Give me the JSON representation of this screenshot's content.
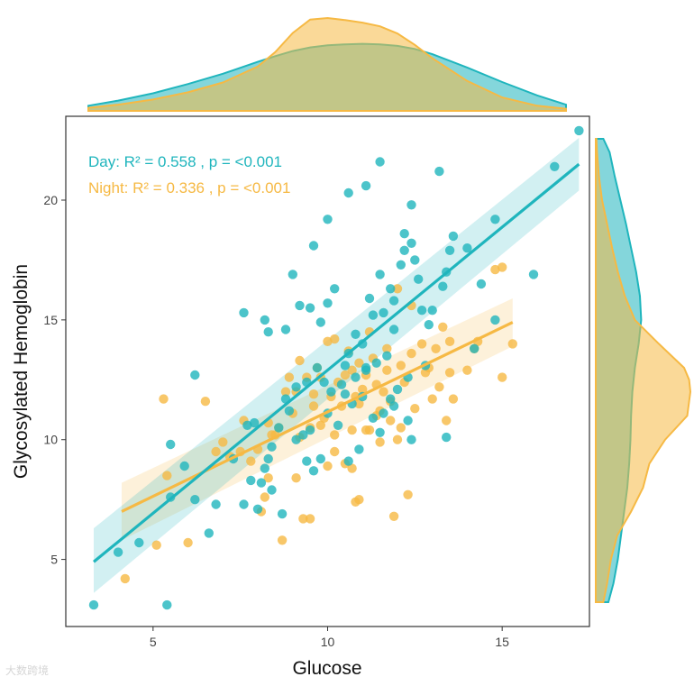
{
  "chart_data": {
    "type": "scatter",
    "xlabel": "Glucose",
    "ylabel": "Glycosylated Hemoglobin",
    "xlim": [
      2.5,
      17.5
    ],
    "ylim": [
      2.2,
      23.5
    ],
    "x_ticks": [
      5,
      10,
      15
    ],
    "y_ticks": [
      5,
      10,
      15,
      20
    ],
    "grid": false,
    "colors": {
      "Day": "#1fb5bd",
      "Night": "#f6b944",
      "overlap": "#c2cc8f",
      "frame": "#333333"
    },
    "annotations": [
      {
        "series": "Day",
        "text": "Day: R² = 0.558 , p = <0.001"
      },
      {
        "series": "Night",
        "text": "Night: R² = 0.336 , p = <0.001"
      }
    ],
    "series": [
      {
        "name": "Day",
        "fit": {
          "x": [
            3.3,
            17.2
          ],
          "y": [
            4.9,
            21.5
          ],
          "ci_start": [
            3.6,
            6.3
          ],
          "ci_end": [
            20.4,
            22.6
          ]
        },
        "points": [
          [
            3.3,
            3.1
          ],
          [
            4.0,
            5.3
          ],
          [
            4.6,
            5.7
          ],
          [
            5.4,
            3.1
          ],
          [
            5.5,
            7.6
          ],
          [
            5.5,
            9.8
          ],
          [
            5.9,
            8.9
          ],
          [
            6.2,
            12.7
          ],
          [
            6.2,
            7.5
          ],
          [
            6.6,
            6.1
          ],
          [
            6.8,
            7.3
          ],
          [
            7.3,
            9.2
          ],
          [
            7.6,
            15.3
          ],
          [
            7.6,
            7.3
          ],
          [
            7.7,
            10.6
          ],
          [
            7.8,
            8.3
          ],
          [
            7.9,
            10.7
          ],
          [
            8.0,
            7.1
          ],
          [
            8.1,
            8.2
          ],
          [
            8.2,
            8.8
          ],
          [
            8.2,
            15.0
          ],
          [
            8.3,
            14.5
          ],
          [
            8.4,
            7.9
          ],
          [
            8.4,
            9.7
          ],
          [
            8.6,
            10.5
          ],
          [
            8.7,
            6.9
          ],
          [
            8.8,
            14.6
          ],
          [
            8.9,
            11.2
          ],
          [
            9.0,
            16.9
          ],
          [
            9.1,
            12.2
          ],
          [
            9.2,
            15.6
          ],
          [
            9.3,
            10.2
          ],
          [
            9.4,
            12.4
          ],
          [
            9.5,
            15.5
          ],
          [
            9.5,
            10.4
          ],
          [
            9.6,
            18.1
          ],
          [
            9.6,
            8.7
          ],
          [
            9.7,
            13.0
          ],
          [
            9.8,
            9.2
          ],
          [
            9.8,
            14.9
          ],
          [
            10.0,
            19.2
          ],
          [
            10.0,
            11.1
          ],
          [
            10.0,
            15.7
          ],
          [
            10.1,
            12.0
          ],
          [
            10.2,
            16.3
          ],
          [
            10.3,
            10.6
          ],
          [
            10.4,
            12.3
          ],
          [
            10.5,
            13.1
          ],
          [
            10.6,
            20.3
          ],
          [
            10.6,
            13.6
          ],
          [
            10.7,
            11.5
          ],
          [
            10.8,
            12.6
          ],
          [
            10.9,
            9.6
          ],
          [
            11.0,
            14.0
          ],
          [
            11.0,
            11.8
          ],
          [
            11.1,
            20.6
          ],
          [
            11.1,
            13.0
          ],
          [
            11.2,
            15.9
          ],
          [
            11.3,
            10.9
          ],
          [
            11.3,
            15.2
          ],
          [
            11.4,
            13.2
          ],
          [
            11.5,
            21.6
          ],
          [
            11.5,
            16.9
          ],
          [
            11.6,
            15.3
          ],
          [
            11.7,
            13.5
          ],
          [
            11.8,
            11.7
          ],
          [
            11.8,
            16.3
          ],
          [
            11.9,
            14.6
          ],
          [
            11.9,
            15.8
          ],
          [
            12.0,
            12.1
          ],
          [
            12.1,
            17.3
          ],
          [
            12.2,
            18.6
          ],
          [
            12.2,
            17.9
          ],
          [
            12.3,
            12.6
          ],
          [
            12.3,
            10.8
          ],
          [
            12.4,
            18.2
          ],
          [
            12.4,
            19.8
          ],
          [
            12.5,
            17.5
          ],
          [
            12.6,
            16.7
          ],
          [
            12.7,
            15.4
          ],
          [
            12.9,
            14.8
          ],
          [
            13.0,
            15.4
          ],
          [
            13.2,
            21.2
          ],
          [
            13.3,
            16.4
          ],
          [
            13.4,
            17.0
          ],
          [
            13.5,
            17.9
          ],
          [
            13.6,
            18.5
          ],
          [
            14.0,
            18.0
          ],
          [
            14.2,
            13.8
          ],
          [
            14.4,
            16.5
          ],
          [
            14.8,
            19.2
          ],
          [
            14.8,
            15.0
          ],
          [
            15.9,
            16.9
          ],
          [
            16.5,
            21.4
          ],
          [
            17.2,
            22.9
          ],
          [
            10.5,
            11.9
          ],
          [
            9.9,
            12.4
          ],
          [
            8.8,
            11.7
          ],
          [
            12.4,
            10.0
          ],
          [
            11.5,
            10.3
          ],
          [
            8.3,
            9.2
          ],
          [
            10.8,
            14.4
          ],
          [
            11.6,
            11.1
          ],
          [
            9.1,
            10.0
          ],
          [
            13.4,
            10.1
          ],
          [
            11.9,
            11.4
          ],
          [
            10.6,
            9.1
          ],
          [
            12.8,
            13.1
          ],
          [
            9.4,
            9.1
          ],
          [
            11.1,
            12.9
          ]
        ]
      },
      {
        "name": "Night",
        "fit": {
          "x": [
            4.1,
            15.3
          ],
          "y": [
            7.0,
            14.9
          ],
          "ci_start": [
            5.8,
            8.2
          ],
          "ci_end": [
            13.9,
            15.9
          ]
        },
        "points": [
          [
            4.2,
            4.2
          ],
          [
            5.1,
            5.6
          ],
          [
            5.3,
            11.7
          ],
          [
            5.4,
            8.5
          ],
          [
            6.0,
            5.7
          ],
          [
            6.5,
            11.6
          ],
          [
            6.8,
            9.5
          ],
          [
            7.0,
            9.9
          ],
          [
            7.2,
            9.3
          ],
          [
            7.5,
            9.5
          ],
          [
            7.6,
            10.8
          ],
          [
            7.8,
            9.1
          ],
          [
            8.0,
            9.6
          ],
          [
            8.1,
            7.0
          ],
          [
            8.2,
            7.6
          ],
          [
            8.3,
            8.4
          ],
          [
            8.3,
            10.7
          ],
          [
            8.5,
            10.2
          ],
          [
            8.6,
            10.5
          ],
          [
            8.7,
            5.8
          ],
          [
            8.8,
            12.0
          ],
          [
            8.9,
            12.6
          ],
          [
            9.0,
            11.1
          ],
          [
            9.1,
            12.0
          ],
          [
            9.2,
            13.3
          ],
          [
            9.2,
            10.1
          ],
          [
            9.3,
            6.7
          ],
          [
            9.4,
            12.6
          ],
          [
            9.5,
            10.5
          ],
          [
            9.5,
            6.7
          ],
          [
            9.6,
            11.4
          ],
          [
            9.7,
            13.0
          ],
          [
            9.8,
            12.6
          ],
          [
            9.9,
            10.9
          ],
          [
            10.0,
            8.9
          ],
          [
            10.0,
            14.1
          ],
          [
            10.1,
            11.8
          ],
          [
            10.2,
            14.2
          ],
          [
            10.2,
            10.2
          ],
          [
            10.3,
            12.4
          ],
          [
            10.4,
            11.4
          ],
          [
            10.5,
            12.7
          ],
          [
            10.5,
            9.0
          ],
          [
            10.6,
            13.7
          ],
          [
            10.7,
            12.9
          ],
          [
            10.7,
            10.4
          ],
          [
            10.8,
            7.4
          ],
          [
            10.8,
            11.8
          ],
          [
            10.9,
            13.2
          ],
          [
            10.9,
            7.5
          ],
          [
            11.0,
            12.1
          ],
          [
            11.1,
            12.7
          ],
          [
            11.2,
            14.5
          ],
          [
            11.2,
            10.4
          ],
          [
            11.3,
            13.4
          ],
          [
            11.4,
            12.3
          ],
          [
            11.4,
            11.0
          ],
          [
            11.5,
            9.9
          ],
          [
            11.6,
            12.0
          ],
          [
            11.7,
            13.8
          ],
          [
            11.8,
            11.6
          ],
          [
            11.8,
            10.8
          ],
          [
            11.9,
            6.8
          ],
          [
            12.0,
            16.3
          ],
          [
            12.0,
            10.0
          ],
          [
            12.1,
            10.5
          ],
          [
            12.2,
            12.4
          ],
          [
            12.3,
            7.7
          ],
          [
            12.4,
            15.6
          ],
          [
            12.4,
            13.6
          ],
          [
            12.5,
            11.3
          ],
          [
            12.7,
            14.0
          ],
          [
            12.9,
            13.0
          ],
          [
            13.0,
            11.7
          ],
          [
            13.1,
            13.8
          ],
          [
            13.3,
            14.7
          ],
          [
            13.4,
            10.8
          ],
          [
            13.5,
            12.8
          ],
          [
            13.5,
            14.1
          ],
          [
            13.6,
            11.7
          ],
          [
            14.0,
            12.9
          ],
          [
            14.2,
            13.8
          ],
          [
            14.3,
            14.1
          ],
          [
            14.8,
            17.1
          ],
          [
            15.0,
            17.2
          ],
          [
            15.3,
            14.0
          ],
          [
            15.0,
            12.6
          ],
          [
            9.1,
            8.4
          ],
          [
            10.7,
            8.8
          ],
          [
            11.1,
            10.4
          ],
          [
            9.6,
            11.9
          ],
          [
            8.4,
            10.2
          ],
          [
            12.8,
            12.8
          ],
          [
            11.5,
            11.2
          ],
          [
            10.2,
            9.5
          ],
          [
            12.1,
            13.1
          ],
          [
            9.8,
            10.6
          ],
          [
            13.2,
            12.2
          ],
          [
            10.9,
            11.5
          ],
          [
            11.7,
            12.9
          ]
        ]
      }
    ],
    "marginal_x": {
      "x": [
        2.0,
        3.0,
        4.0,
        5.0,
        6.0,
        7.0,
        8.0,
        8.5,
        9.0,
        9.5,
        10.0,
        10.5,
        11.0,
        11.5,
        12.0,
        12.5,
        13.0,
        14.0,
        15.0,
        16.0,
        17.0,
        18.0
      ],
      "Day": [
        0.004,
        0.01,
        0.02,
        0.034,
        0.052,
        0.072,
        0.095,
        0.106,
        0.116,
        0.123,
        0.127,
        0.129,
        0.13,
        0.129,
        0.126,
        0.12,
        0.11,
        0.084,
        0.056,
        0.03,
        0.012,
        0.004
      ],
      "Night": [
        0.003,
        0.006,
        0.012,
        0.022,
        0.036,
        0.055,
        0.086,
        0.114,
        0.151,
        0.177,
        0.18,
        0.176,
        0.171,
        0.164,
        0.15,
        0.128,
        0.102,
        0.058,
        0.026,
        0.01,
        0.004,
        0.002
      ]
    },
    "marginal_y": {
      "y": [
        3.0,
        4.0,
        5.0,
        6.0,
        7.0,
        8.0,
        9.0,
        10.0,
        11.0,
        12.0,
        12.5,
        13.0,
        14.0,
        15.0,
        16.0,
        17.0,
        18.0,
        19.0,
        20.0,
        21.0,
        22.0,
        23.0
      ],
      "Day": [
        0.02,
        0.028,
        0.035,
        0.04,
        0.045,
        0.05,
        0.053,
        0.055,
        0.056,
        0.058,
        0.06,
        0.062,
        0.068,
        0.072,
        0.07,
        0.064,
        0.056,
        0.048,
        0.039,
        0.03,
        0.022,
        0.012
      ],
      "Night": [
        0.012,
        0.018,
        0.024,
        0.034,
        0.056,
        0.075,
        0.085,
        0.11,
        0.145,
        0.15,
        0.148,
        0.14,
        0.1,
        0.062,
        0.046,
        0.035,
        0.026,
        0.018,
        0.01,
        0.005,
        0.002,
        0.001
      ]
    }
  },
  "watermark_text": "大数跨境"
}
